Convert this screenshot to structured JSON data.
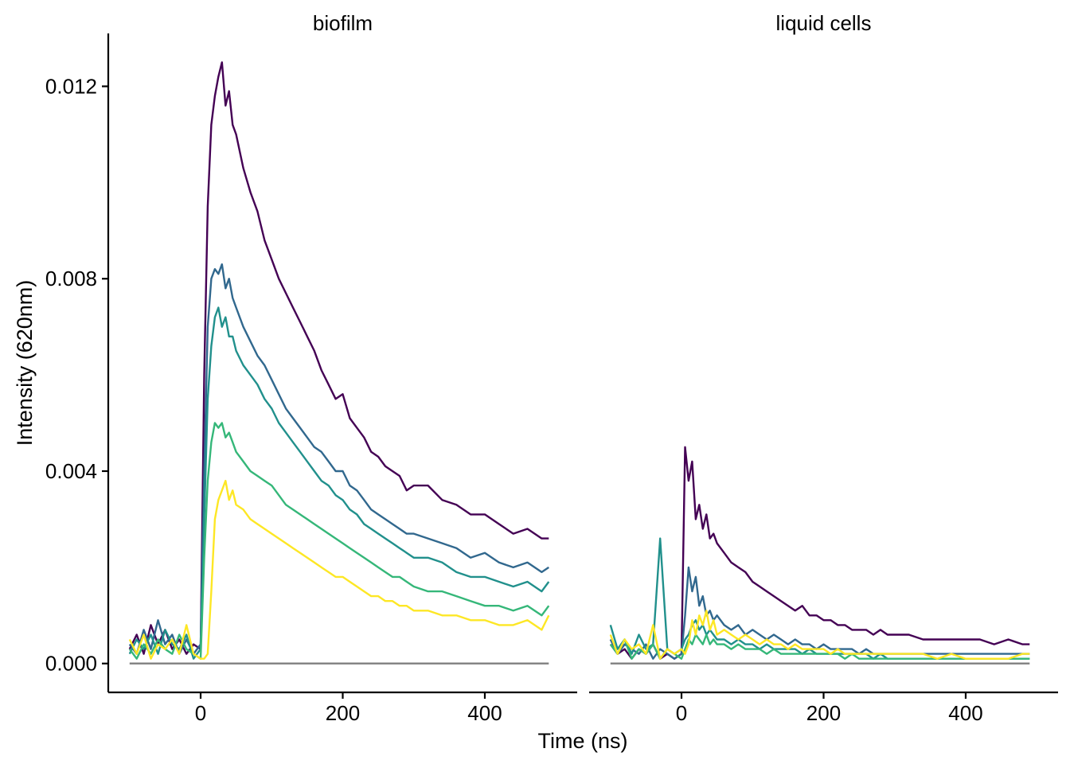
{
  "chart_data": {
    "type": "line",
    "xlabel": "Time (ns)",
    "ylabel": "Intensity (620nm)",
    "xlim": [
      -130,
      530
    ],
    "ylim": [
      -0.0006,
      0.0131
    ],
    "x_ticks": [
      0,
      200,
      400
    ],
    "x_tick_labels": [
      "0",
      "200",
      "400"
    ],
    "y_ticks": [
      0,
      0.004,
      0.008,
      0.012
    ],
    "y_tick_labels": [
      "0.000",
      "0.004",
      "0.008",
      "0.012"
    ],
    "grid": false,
    "legend": "none",
    "x": [
      -100,
      -90,
      -80,
      -70,
      -60,
      -50,
      -40,
      -30,
      -20,
      -10,
      0,
      5,
      10,
      15,
      20,
      25,
      30,
      35,
      40,
      45,
      50,
      60,
      70,
      80,
      90,
      100,
      110,
      120,
      130,
      140,
      150,
      160,
      170,
      180,
      190,
      200,
      210,
      220,
      230,
      240,
      250,
      260,
      270,
      280,
      290,
      300,
      320,
      340,
      360,
      380,
      400,
      420,
      440,
      460,
      480,
      490
    ],
    "colors": [
      "#440154",
      "#31688E",
      "#21908C",
      "#35B779",
      "#FDE725"
    ],
    "baseline": {
      "value": 0,
      "color": "#7f7f7f"
    },
    "panels": [
      {
        "label": "biofilm",
        "series": [
          {
            "color": "#440154",
            "values": [
              0.0003,
              0.0006,
              0.0002,
              0.0008,
              0.0004,
              0.0007,
              0.0003,
              0.0005,
              0.0002,
              0.0004,
              0.0003,
              0.006,
              0.0095,
              0.0112,
              0.0118,
              0.0122,
              0.0125,
              0.0116,
              0.0119,
              0.0112,
              0.011,
              0.0103,
              0.0098,
              0.0094,
              0.0088,
              0.0084,
              0.008,
              0.0077,
              0.0074,
              0.0071,
              0.0068,
              0.0065,
              0.0061,
              0.0058,
              0.0055,
              0.0056,
              0.0051,
              0.0049,
              0.0047,
              0.0044,
              0.0043,
              0.0041,
              0.004,
              0.0039,
              0.0036,
              0.0037,
              0.0037,
              0.0034,
              0.0033,
              0.0031,
              0.0031,
              0.0029,
              0.0027,
              0.0028,
              0.0026,
              0.0026
            ]
          },
          {
            "color": "#31688E",
            "values": [
              0.0004,
              0.0002,
              0.0007,
              0.0003,
              0.0009,
              0.0004,
              0.0006,
              0.0002,
              0.0005,
              0.0002,
              0.0004,
              0.004,
              0.007,
              0.008,
              0.0082,
              0.0081,
              0.0083,
              0.0078,
              0.008,
              0.0076,
              0.0074,
              0.007,
              0.0067,
              0.0064,
              0.0062,
              0.0059,
              0.0056,
              0.0053,
              0.0051,
              0.0049,
              0.0047,
              0.0045,
              0.0044,
              0.0042,
              0.004,
              0.004,
              0.0037,
              0.0036,
              0.0034,
              0.0032,
              0.0031,
              0.003,
              0.0029,
              0.0028,
              0.0027,
              0.0027,
              0.0026,
              0.0025,
              0.0024,
              0.0022,
              0.0023,
              0.0021,
              0.002,
              0.0021,
              0.0019,
              0.002
            ]
          },
          {
            "color": "#21908C",
            "values": [
              0.0002,
              0.0005,
              0.0003,
              0.0006,
              0.0002,
              0.0007,
              0.0004,
              0.0003,
              0.0006,
              0.0001,
              0.0003,
              0.003,
              0.0055,
              0.0066,
              0.0072,
              0.0074,
              0.007,
              0.0072,
              0.0068,
              0.0068,
              0.0065,
              0.0062,
              0.006,
              0.0058,
              0.0055,
              0.0053,
              0.005,
              0.0048,
              0.0046,
              0.0044,
              0.0042,
              0.004,
              0.0038,
              0.0037,
              0.0035,
              0.0034,
              0.0032,
              0.0031,
              0.0029,
              0.0028,
              0.0027,
              0.0026,
              0.0025,
              0.0024,
              0.0023,
              0.0022,
              0.0022,
              0.0021,
              0.0019,
              0.0018,
              0.0018,
              0.0017,
              0.0016,
              0.0017,
              0.0015,
              0.0017
            ]
          },
          {
            "color": "#35B779",
            "values": [
              0.0003,
              0.0001,
              0.0004,
              0.0002,
              0.0005,
              0.0003,
              0.0002,
              0.0006,
              0.0003,
              0.0002,
              0.0001,
              0.0022,
              0.0038,
              0.0046,
              0.005,
              0.0049,
              0.005,
              0.0047,
              0.0048,
              0.0046,
              0.0044,
              0.0042,
              0.004,
              0.0039,
              0.0038,
              0.0037,
              0.0035,
              0.0033,
              0.0032,
              0.0031,
              0.003,
              0.0029,
              0.0028,
              0.0027,
              0.0026,
              0.0025,
              0.0024,
              0.0023,
              0.0022,
              0.0021,
              0.002,
              0.0019,
              0.0018,
              0.0018,
              0.0017,
              0.0016,
              0.0015,
              0.0015,
              0.0014,
              0.0013,
              0.0012,
              0.0012,
              0.0011,
              0.0012,
              0.001,
              0.0012
            ]
          },
          {
            "color": "#FDE725",
            "values": [
              0.0005,
              0.0002,
              0.0006,
              0.0001,
              0.0004,
              0.0003,
              0.0005,
              0.0002,
              0.0008,
              0.0002,
              0.0001,
              0.0001,
              0.0002,
              0.0015,
              0.003,
              0.0034,
              0.0036,
              0.0038,
              0.0034,
              0.0036,
              0.0033,
              0.0032,
              0.003,
              0.0029,
              0.0028,
              0.0027,
              0.0026,
              0.0025,
              0.0024,
              0.0023,
              0.0022,
              0.0021,
              0.002,
              0.0019,
              0.0018,
              0.0018,
              0.0017,
              0.0016,
              0.0015,
              0.0014,
              0.0014,
              0.0013,
              0.0013,
              0.0012,
              0.0012,
              0.0011,
              0.0011,
              0.001,
              0.001,
              0.0009,
              0.0009,
              0.0008,
              0.0008,
              0.0009,
              0.0007,
              0.001
            ]
          }
        ]
      },
      {
        "label": "liquid  cells",
        "series": [
          {
            "color": "#440154",
            "values": [
              0.0004,
              0.0002,
              0.0003,
              0.0001,
              0.0003,
              0.0002,
              0.0004,
              0.0001,
              0.0002,
              0.0001,
              0.0002,
              0.0045,
              0.0038,
              0.0042,
              0.003,
              0.0033,
              0.0028,
              0.0031,
              0.0026,
              0.0027,
              0.0025,
              0.0023,
              0.0021,
              0.002,
              0.0019,
              0.0017,
              0.0016,
              0.0015,
              0.0014,
              0.0013,
              0.0012,
              0.0011,
              0.0012,
              0.001,
              0.001,
              0.0009,
              0.0009,
              0.0008,
              0.0008,
              0.0007,
              0.0007,
              0.0007,
              0.0006,
              0.0007,
              0.0006,
              0.0006,
              0.0006,
              0.0005,
              0.0005,
              0.0005,
              0.0005,
              0.0005,
              0.0004,
              0.0005,
              0.0004,
              0.0004
            ]
          },
          {
            "color": "#31688E",
            "values": [
              0.0005,
              0.0002,
              0.0004,
              0.0003,
              0.0002,
              0.0004,
              0.0001,
              0.0003,
              0.0002,
              0.0001,
              0.0002,
              0.001,
              0.002,
              0.0015,
              0.0018,
              0.0012,
              0.0014,
              0.001,
              0.0011,
              0.0009,
              0.001,
              0.0008,
              0.0007,
              0.0008,
              0.0006,
              0.0007,
              0.0006,
              0.0005,
              0.0006,
              0.0005,
              0.0004,
              0.0005,
              0.0004,
              0.0004,
              0.0003,
              0.0004,
              0.0003,
              0.0003,
              0.0003,
              0.0003,
              0.0002,
              0.0003,
              0.0002,
              0.0002,
              0.0002,
              0.0002,
              0.0002,
              0.0002,
              0.0002,
              0.0002,
              0.0002,
              0.0002,
              0.0002,
              0.0002,
              0.0002,
              0.0002
            ]
          },
          {
            "color": "#21908C",
            "values": [
              0.0008,
              0.0003,
              0.0005,
              0.0002,
              0.0006,
              0.0003,
              0.0004,
              0.0026,
              0.0003,
              0.0002,
              0.0003,
              0.0005,
              0.0006,
              0.0008,
              0.0009,
              0.0007,
              0.0008,
              0.0006,
              0.0007,
              0.0006,
              0.0005,
              0.0005,
              0.0004,
              0.0005,
              0.0004,
              0.0004,
              0.0003,
              0.0004,
              0.0003,
              0.0003,
              0.0003,
              0.0003,
              0.0002,
              0.0003,
              0.0002,
              0.0002,
              0.0002,
              0.0002,
              0.0002,
              0.0002,
              0.0002,
              0.0002,
              0.0001,
              0.0002,
              0.0001,
              0.0001,
              0.0001,
              0.0001,
              0.0001,
              0.0001,
              0.0001,
              0.0001,
              0.0001,
              0.0001,
              0.0001,
              0.0001
            ]
          },
          {
            "color": "#35B779",
            "values": [
              0.0004,
              0.0002,
              0.0005,
              0.0001,
              0.0003,
              0.0002,
              0.0004,
              0.0001,
              0.0003,
              0.0002,
              0.0001,
              0.0003,
              0.0005,
              0.0004,
              0.0006,
              0.0005,
              0.0004,
              0.0006,
              0.0004,
              0.0005,
              0.0004,
              0.0004,
              0.0003,
              0.0004,
              0.0003,
              0.0003,
              0.0003,
              0.0002,
              0.0003,
              0.0002,
              0.0002,
              0.0002,
              0.0002,
              0.0002,
              0.0002,
              0.0002,
              0.0002,
              0.0002,
              0.0001,
              0.0002,
              0.0001,
              0.0001,
              0.0001,
              0.0001,
              0.0001,
              0.0001,
              0.0001,
              0.0001,
              0.0001,
              0.0001,
              0.0001,
              0.0001,
              0.0001,
              0.0001,
              0.0001,
              0.0001
            ]
          },
          {
            "color": "#FDE725",
            "values": [
              0.0006,
              0.0002,
              0.0005,
              0.0003,
              0.0004,
              0.0002,
              0.0008,
              0.0001,
              0.0003,
              0.0002,
              0.0003,
              0.0002,
              0.0004,
              0.0009,
              0.0006,
              0.001,
              0.0008,
              0.0011,
              0.0007,
              0.0009,
              0.0006,
              0.0007,
              0.0006,
              0.0005,
              0.0006,
              0.0005,
              0.0004,
              0.0005,
              0.0004,
              0.0004,
              0.0003,
              0.0004,
              0.0003,
              0.0003,
              0.0003,
              0.0003,
              0.0002,
              0.0003,
              0.0002,
              0.0002,
              0.0002,
              0.0002,
              0.0002,
              0.0002,
              0.0002,
              0.0002,
              0.0002,
              0.0002,
              0.0001,
              0.0002,
              0.0001,
              0.0001,
              0.0001,
              0.0001,
              0.0002,
              0.0002
            ]
          }
        ]
      }
    ]
  }
}
